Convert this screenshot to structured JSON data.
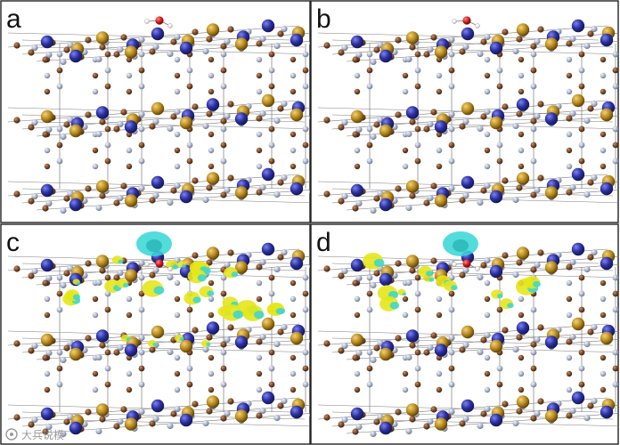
{
  "figure": {
    "panels": [
      {
        "label": "a",
        "description_id": "structure-with-adsorbed-molecule",
        "charge_density": false
      },
      {
        "label": "b",
        "description_id": "structure-with-adsorbed-molecule",
        "charge_density": false
      },
      {
        "label": "c",
        "description_id": "charge-density-difference",
        "charge_density": true
      },
      {
        "label": "d",
        "description_id": "charge-density-difference",
        "charge_density": true
      }
    ],
    "watermark": {
      "text": "大兵说模"
    }
  },
  "colors": {
    "border": "#222222",
    "cation_blue": "#2a2f9e",
    "cation_gold": "#b88a1c",
    "brown_atom": "#7a4a26",
    "light_atom": "#aeb6cc",
    "oxygen_red": "#d61818",
    "hydrogen_white": "#f2f2f2",
    "bond_gray": "#7c7c7c",
    "isosurface_cyan": "#35d6d6",
    "isosurface_yellow": "#e6e619"
  }
}
